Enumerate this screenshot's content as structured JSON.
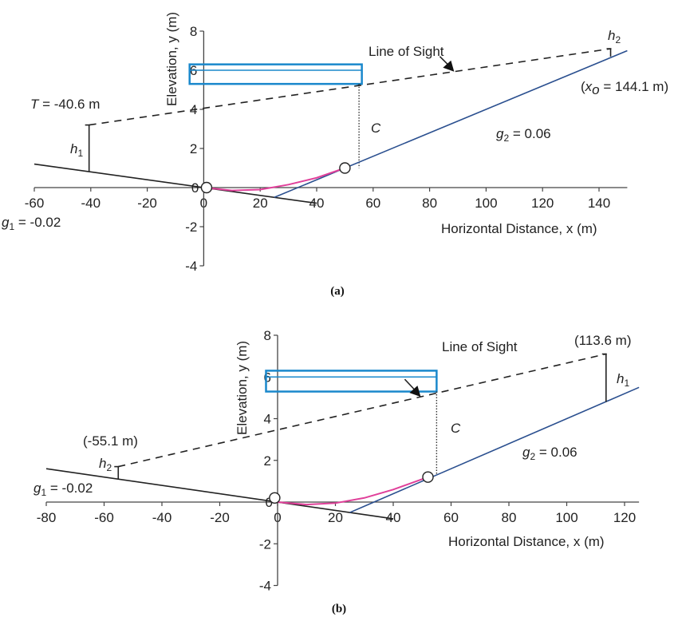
{
  "chart_data": [
    {
      "type": "line",
      "panel_label": "(a)",
      "xlabel": "Horizontal Distance, x (m)",
      "ylabel": "Elevation, y (m)",
      "xlim": [
        -60,
        150
      ],
      "ylim": [
        -4,
        8
      ],
      "xticks": [
        -60,
        -40,
        -20,
        0,
        20,
        40,
        60,
        80,
        100,
        120,
        140
      ],
      "yticks": [
        -4,
        -2,
        0,
        2,
        4,
        6,
        8
      ],
      "grid": false,
      "series": [
        {
          "name": "g1 grade line",
          "color": "#222222",
          "style": "solid",
          "points": [
            [
              -60,
              1.2
            ],
            [
              40,
              -0.8
            ]
          ]
        },
        {
          "name": "g2 grade line",
          "color": "#2a4f8f",
          "style": "solid",
          "points": [
            [
              25,
              -0.5
            ],
            [
              150,
              7.0
            ]
          ]
        },
        {
          "name": "vertical curve",
          "color": "#e0409a",
          "style": "solid",
          "points": [
            [
              0,
              0
            ],
            [
              10,
              -0.15
            ],
            [
              20,
              -0.1
            ],
            [
              30,
              0.15
            ],
            [
              40,
              0.5
            ],
            [
              50,
              1.0
            ]
          ]
        },
        {
          "name": "Line of Sight",
          "color": "#222222",
          "style": "dashed",
          "points": [
            [
              -40.6,
              3.2
            ],
            [
              144.1,
              7.1
            ]
          ]
        }
      ],
      "markers": [
        {
          "name": "curve-start-point",
          "x": 1,
          "y": 0
        },
        {
          "name": "curve-end-point",
          "x": 50,
          "y": 1.0
        }
      ],
      "sight_offsets": [
        {
          "name": "h1",
          "x": -40.6,
          "y_low": 0.8,
          "y_high": 3.2,
          "label": "h1"
        },
        {
          "name": "h2",
          "x": 144.1,
          "y_low": 6.7,
          "y_high": 7.1,
          "label": "h2"
        }
      ],
      "clearance": {
        "x": 55,
        "y_low": 1.0,
        "y_high": 5.3,
        "label": "C"
      },
      "structure_box": {
        "x0": -5,
        "x1": 56,
        "y0": 5.3,
        "y1": 6.3,
        "inner_y": 6.0,
        "color": "#1a88cc"
      },
      "annotations": {
        "g1": "g",
        "g1_sub": "1",
        "g1_value": " = -0.02",
        "g2": "g",
        "g2_sub": "2",
        "g2_value": " = 0.06",
        "T_label": "T",
        "T_value": " = -40.6 m",
        "xo_open": "(",
        "xo_var": "x",
        "xo_sub": "o",
        "xo_value": " = 144.1 m)",
        "line_of_sight": "Line of Sight",
        "h1": "h",
        "h1_sub": "1",
        "h2": "h",
        "h2_sub": "2",
        "C": "C"
      }
    },
    {
      "type": "line",
      "panel_label": "(b)",
      "xlabel": "Horizontal Distance, x (m)",
      "ylabel": "Elevation, y (m)",
      "xlim": [
        -80,
        125
      ],
      "ylim": [
        -4,
        8
      ],
      "xticks": [
        -80,
        -60,
        -40,
        -20,
        0,
        20,
        40,
        60,
        80,
        100,
        120
      ],
      "yticks": [
        -4,
        -2,
        0,
        2,
        4,
        6,
        8
      ],
      "grid": false,
      "series": [
        {
          "name": "g1 grade line",
          "color": "#222222",
          "style": "solid",
          "points": [
            [
              -80,
              1.6
            ],
            [
              40,
              -0.8
            ]
          ]
        },
        {
          "name": "g2 grade line",
          "color": "#2a4f8f",
          "style": "solid",
          "points": [
            [
              25,
              -0.5
            ],
            [
              125,
              5.5
            ]
          ]
        },
        {
          "name": "vertical curve",
          "color": "#e0409a",
          "style": "solid",
          "points": [
            [
              0,
              0
            ],
            [
              10,
              -0.12
            ],
            [
              20,
              -0.05
            ],
            [
              30,
              0.2
            ],
            [
              40,
              0.6
            ],
            [
              52,
              1.2
            ]
          ]
        },
        {
          "name": "Line of Sight",
          "color": "#222222",
          "style": "dashed",
          "points": [
            [
              -55.1,
              1.7
            ],
            [
              113.6,
              7.1
            ]
          ]
        }
      ],
      "markers": [
        {
          "name": "curve-start-point",
          "x": -1,
          "y": 0.2
        },
        {
          "name": "curve-end-point",
          "x": 52,
          "y": 1.2
        }
      ],
      "sight_offsets": [
        {
          "name": "h2",
          "x": -55.1,
          "y_low": 1.1,
          "y_high": 1.7,
          "label": "h2"
        },
        {
          "name": "h1",
          "x": 113.6,
          "y_low": 4.8,
          "y_high": 7.1,
          "label": "h1"
        }
      ],
      "clearance": {
        "x": 55,
        "y_low": 1.3,
        "y_high": 5.3,
        "label": "C"
      },
      "structure_box": {
        "x0": -4,
        "x1": 55,
        "y0": 5.3,
        "y1": 6.3,
        "inner_y": 6.0,
        "color": "#1a88cc"
      },
      "annotations": {
        "g1": "g",
        "g1_sub": "1",
        "g1_value": " = -0.02",
        "g2": "g",
        "g2_sub": "2",
        "g2_value": " = 0.06",
        "left_x_label": "(-55.1 m)",
        "right_x_label": "(113.6 m)",
        "line_of_sight": "Line of Sight",
        "h1": "h",
        "h1_sub": "1",
        "h2": "h",
        "h2_sub": "2",
        "C": "C"
      }
    }
  ]
}
